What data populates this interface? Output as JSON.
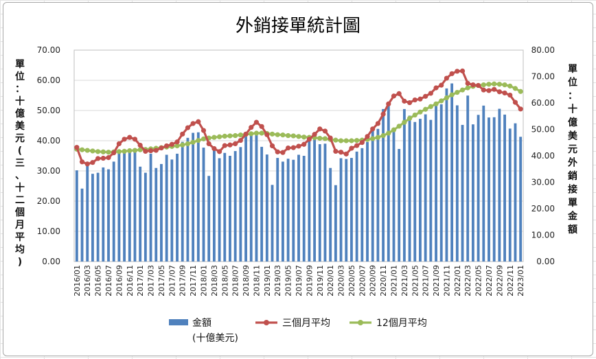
{
  "chart_data": {
    "type": "bar",
    "title": "外銷接單統計圖",
    "left_axis_label": "單位：十億美元(三、十二個月平均)",
    "right_axis_label": "單位：十億美元外銷接單金額",
    "ylim_left": [
      0,
      70
    ],
    "ylim_right": [
      0,
      80
    ],
    "yticks_left": [
      "0.00",
      "10.00",
      "20.00",
      "30.00",
      "40.00",
      "50.00",
      "60.00",
      "70.00"
    ],
    "yticks_right": [
      "0.00",
      "10.00",
      "20.00",
      "30.00",
      "40.00",
      "50.00",
      "60.00",
      "70.00",
      "80.00"
    ],
    "grid": true,
    "legend_position": "bottom",
    "colors": {
      "bars": "#4f81bd",
      "three_month": "#c0504d",
      "twelve_month": "#9bbb59"
    },
    "x": [
      "2016/01",
      "2016/02",
      "2016/03",
      "2016/04",
      "2016/05",
      "2016/06",
      "2016/07",
      "2016/08",
      "2016/09",
      "2016/10",
      "2016/11",
      "2016/12",
      "2017/01",
      "2017/02",
      "2017/03",
      "2017/04",
      "2017/05",
      "2017/06",
      "2017/07",
      "2017/08",
      "2017/09",
      "2017/10",
      "2017/11",
      "2017/12",
      "2018/01",
      "2018/02",
      "2018/03",
      "2018/04",
      "2018/05",
      "2018/06",
      "2018/07",
      "2018/08",
      "2018/09",
      "2018/10",
      "2018/11",
      "2018/12",
      "2019/01",
      "2019/02",
      "2019/03",
      "2019/04",
      "2019/05",
      "2019/06",
      "2019/07",
      "2019/08",
      "2019/09",
      "2019/10",
      "2019/11",
      "2019/12",
      "2020/01",
      "2020/02",
      "2020/03",
      "2020/04",
      "2020/05",
      "2020/06",
      "2020/07",
      "2020/08",
      "2020/09",
      "2020/10",
      "2020/11",
      "2020/12",
      "2021/01",
      "2021/02",
      "2021/03",
      "2021/04",
      "2021/05",
      "2021/06",
      "2021/07",
      "2021/08",
      "2021/09",
      "2021/10",
      "2021/11",
      "2021/12",
      "2022/01",
      "2022/02",
      "2022/03",
      "2022/04",
      "2022/05",
      "2022/06",
      "2022/07",
      "2022/08",
      "2022/09",
      "2022/10",
      "2022/11",
      "2022/12",
      "2023/01"
    ],
    "x_tick_labels": [
      "2016/01",
      "2016/03",
      "2016/05",
      "2016/07",
      "2016/09",
      "2016/11",
      "2017/01",
      "2017/03",
      "2017/05",
      "2017/07",
      "2017/09",
      "2017/11",
      "2018/01",
      "2018/03",
      "2018/05",
      "2018/07",
      "2018/09",
      "2018/11",
      "2019/01",
      "2019/03",
      "2019/05",
      "2019/07",
      "2019/09",
      "2019/11",
      "2020/01",
      "2020/03",
      "2020/05",
      "2020/07",
      "2020/09",
      "2020/11",
      "2021/01",
      "2021/03",
      "2021/05",
      "2021/07",
      "2021/09",
      "2021/11",
      "2022/01",
      "2022/03",
      "2022/05",
      "2022/07",
      "2022/09",
      "2022/11",
      "2023/01"
    ],
    "series": [
      {
        "name": "金額(十億美元)",
        "type": "bar",
        "axis": "right",
        "values": [
          34.5,
          27.6,
          37.5,
          33.2,
          33.6,
          35.6,
          34.9,
          37.8,
          41.2,
          41.6,
          42.1,
          41.5,
          35.9,
          33.6,
          40.8,
          35.4,
          36.9,
          40.4,
          38.6,
          40.8,
          45.3,
          46.8,
          48.7,
          48.9,
          43.1,
          32.4,
          42.3,
          39.1,
          41.1,
          40.0,
          41.8,
          43.3,
          47.7,
          48.5,
          48.3,
          43.4,
          40.5,
          29.0,
          39.2,
          37.8,
          38.9,
          38.5,
          40.4,
          40.0,
          45.7,
          46.2,
          44.4,
          44.6,
          35.4,
          28.9,
          39.1,
          38.8,
          39.2,
          41.6,
          42.9,
          45.2,
          49.7,
          50.2,
          57.7,
          60.4,
          49.8,
          42.6,
          57.7,
          55.2,
          52.8,
          54.0,
          55.7,
          53.6,
          60.2,
          59.5,
          65.5,
          67.4,
          59.1,
          51.7,
          62.8,
          51.9,
          55.5,
          59.0,
          54.5,
          54.6,
          57.8,
          55.6,
          50.3,
          52.3,
          47.2
        ]
      },
      {
        "name": "三個月平均",
        "type": "line",
        "axis": "left",
        "values": [
          37.8,
          33.0,
          32.3,
          32.8,
          34.1,
          34.2,
          34.4,
          36.0,
          39.0,
          40.5,
          41.1,
          40.5,
          38.5,
          36.5,
          36.7,
          36.8,
          37.6,
          38.3,
          38.8,
          39.6,
          42.2,
          44.3,
          45.7,
          46.3,
          43.4,
          39.0,
          37.4,
          36.4,
          38.4,
          38.6,
          39.0,
          40.1,
          42.2,
          44.4,
          46.1,
          44.7,
          42.0,
          38.3,
          36.3,
          36.1,
          37.6,
          37.7,
          38.2,
          38.8,
          40.5,
          42.1,
          43.9,
          43.2,
          40.9,
          36.5,
          36.2,
          35.6,
          37.5,
          38.4,
          39.4,
          41.4,
          43.9,
          45.7,
          48.8,
          52.2,
          54.8,
          55.6,
          53.1,
          52.6,
          53.5,
          53.8,
          54.7,
          55.7,
          57.5,
          58.4,
          60.7,
          62.2,
          63.0,
          63.1,
          59.0,
          58.5,
          58.3,
          56.8,
          56.6,
          57.0,
          56.2,
          55.8,
          55.1,
          52.7,
          50.5
        ]
      },
      {
        "name": "12個月平均",
        "type": "line",
        "axis": "left",
        "values": [
          37.2,
          37.0,
          36.8,
          36.6,
          36.4,
          36.3,
          36.2,
          36.3,
          36.4,
          36.5,
          36.7,
          36.8,
          37.0,
          37.1,
          37.3,
          37.5,
          37.7,
          37.9,
          38.1,
          38.3,
          38.6,
          39.0,
          39.5,
          40.1,
          40.6,
          40.9,
          41.1,
          41.3,
          41.5,
          41.6,
          41.7,
          41.9,
          42.1,
          42.3,
          42.5,
          42.5,
          42.4,
          42.2,
          42.0,
          41.9,
          41.7,
          41.6,
          41.4,
          41.2,
          41.1,
          41.0,
          40.8,
          40.7,
          40.4,
          40.2,
          40.0,
          40.0,
          40.0,
          40.1,
          40.2,
          40.4,
          40.7,
          41.1,
          41.7,
          42.5,
          43.6,
          44.8,
          46.1,
          47.4,
          48.5,
          49.5,
          50.4,
          51.3,
          52.2,
          53.2,
          54.2,
          55.2,
          56.0,
          56.8,
          57.5,
          58.0,
          58.3,
          58.5,
          58.7,
          58.8,
          58.7,
          58.5,
          58.1,
          57.3,
          56.3
        ]
      }
    ]
  }
}
